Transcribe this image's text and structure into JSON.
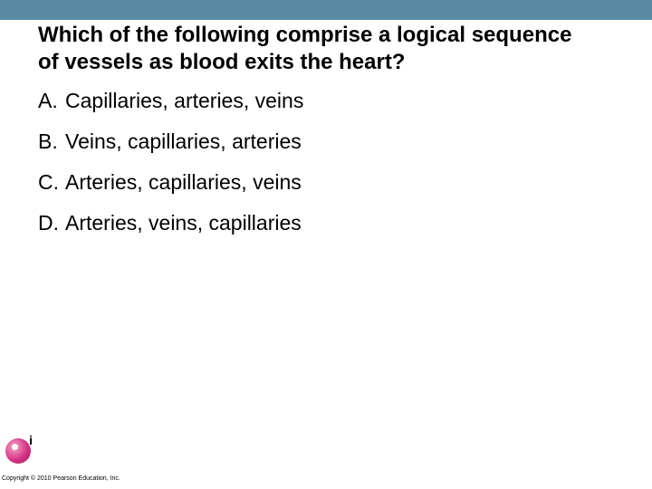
{
  "header": {
    "bar_color": "#5b8ba3"
  },
  "question": {
    "text": "Which of the following comprise a logical sequence of vessels as blood exits the heart?",
    "fontsize": 24,
    "fontweight": "bold",
    "color": "#000000"
  },
  "options": [
    {
      "letter": "A.",
      "text": "Capillaries, arteries, veins"
    },
    {
      "letter": "B.",
      "text": "Veins, capillaries, arteries"
    },
    {
      "letter": "C.",
      "text": "Arteries, capillaries, veins"
    },
    {
      "letter": "D.",
      "text": "Arteries, veins, capillaries"
    }
  ],
  "option_style": {
    "fontsize": 23,
    "color": "#000000"
  },
  "footer": {
    "copyright": "Copyright © 2010 Pearson Education, Inc.",
    "copyright_fontsize": 7,
    "logo_color": "#d63384"
  },
  "background_color": "#ffffff"
}
